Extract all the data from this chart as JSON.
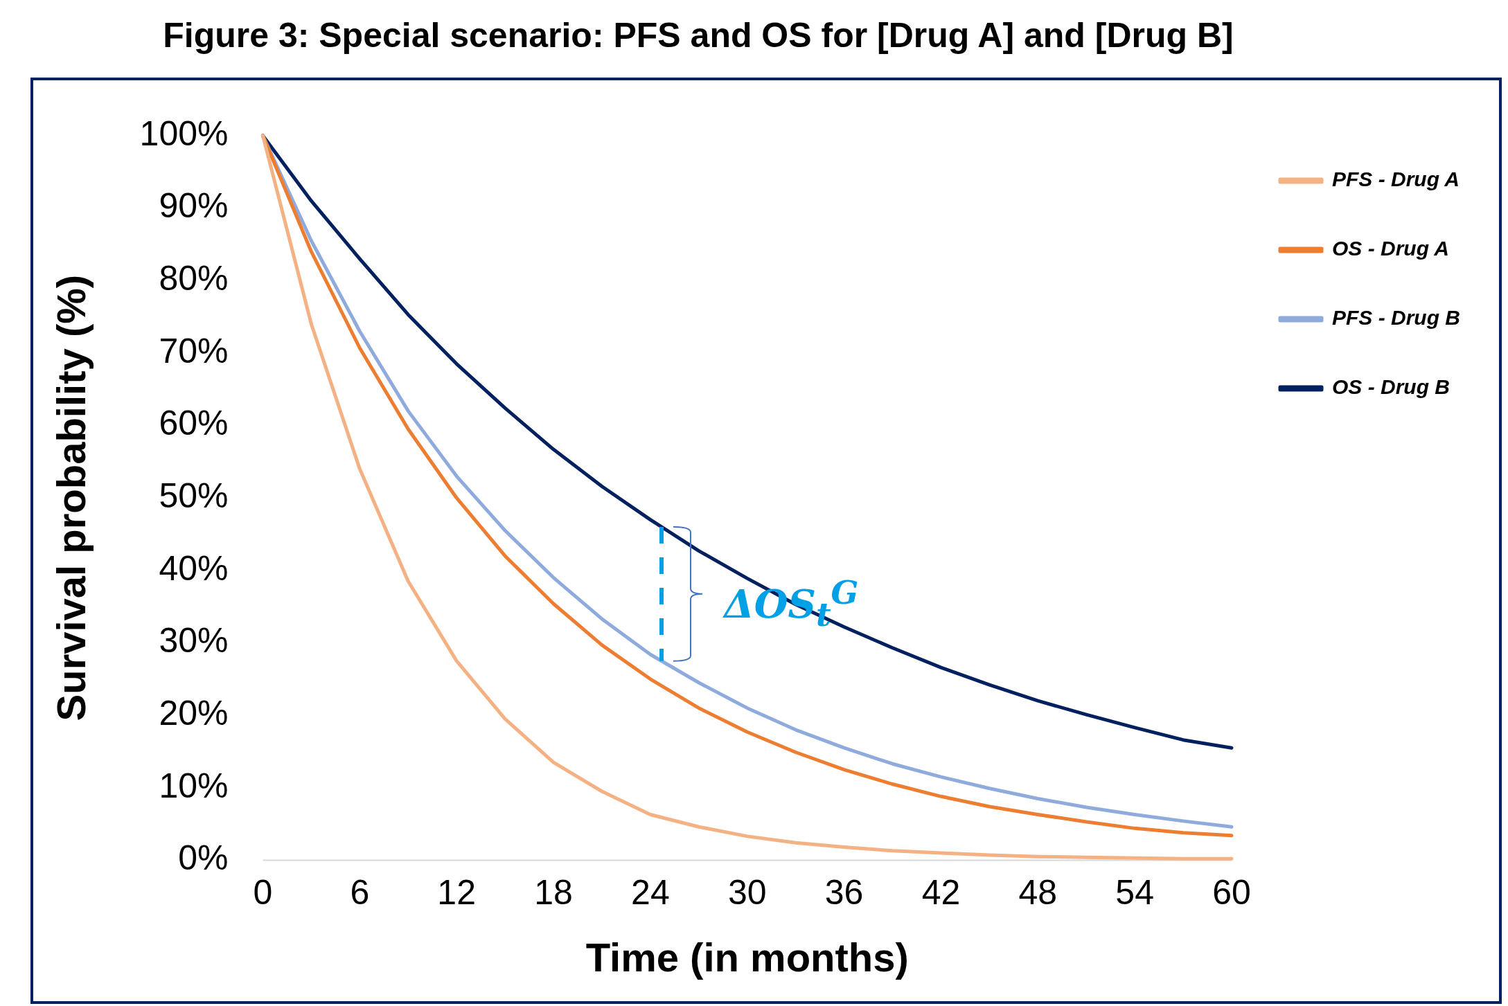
{
  "chart_data": {
    "type": "line",
    "title": "Figure 3: Special scenario: PFS and OS for [Drug A] and [Drug B]",
    "xlabel": "Time (in months)",
    "ylabel": "Survival probability (%)",
    "x": [
      0,
      3,
      6,
      9,
      12,
      15,
      18,
      21,
      24,
      27,
      30,
      33,
      36,
      39,
      42,
      45,
      48,
      51,
      54,
      57,
      60
    ],
    "series": [
      {
        "name": "PFS - Drug A",
        "color": "#f4b183",
        "values": [
          100,
          74,
          54,
          38.5,
          27.5,
          19.5,
          13.5,
          9.5,
          6.3,
          4.6,
          3.3,
          2.4,
          1.8,
          1.3,
          1,
          0.7,
          0.5,
          0.4,
          0.3,
          0.2,
          0.2
        ]
      },
      {
        "name": "OS - Drug A",
        "color": "#ed7d31",
        "values": [
          100,
          84,
          70.7,
          59.5,
          50,
          42,
          35.4,
          29.7,
          25,
          21,
          17.7,
          14.9,
          12.5,
          10.5,
          8.8,
          7.4,
          6.3,
          5.3,
          4.4,
          3.8,
          3.4
        ]
      },
      {
        "name": "PFS - Drug B",
        "color": "#8faadc",
        "values": [
          100,
          85.5,
          73,
          62,
          53,
          45.5,
          39,
          33.3,
          28.4,
          24.5,
          21,
          18,
          15.5,
          13.3,
          11.5,
          9.9,
          8.5,
          7.3,
          6.3,
          5.4,
          4.6
        ]
      },
      {
        "name": "OS - Drug B",
        "color": "#002060",
        "values": [
          100,
          91,
          83,
          75.3,
          68.5,
          62.4,
          56.7,
          51.6,
          47,
          42.7,
          38.9,
          35.3,
          32.2,
          29.3,
          26.6,
          24.2,
          22,
          20.1,
          18.3,
          16.6,
          15.5
        ]
      }
    ],
    "xlim": [
      0,
      60
    ],
    "xticks": [
      0,
      6,
      12,
      18,
      24,
      30,
      36,
      42,
      48,
      54,
      60
    ],
    "ylim": [
      0,
      100
    ],
    "yticks": [
      {
        "value": 0,
        "label": "0%"
      },
      {
        "value": 10,
        "label": "10%"
      },
      {
        "value": 20,
        "label": "20%"
      },
      {
        "value": 30,
        "label": "30%"
      },
      {
        "value": 40,
        "label": "40%"
      },
      {
        "value": 50,
        "label": "50%"
      },
      {
        "value": 60,
        "label": "60%"
      },
      {
        "value": 70,
        "label": "70%"
      },
      {
        "value": 80,
        "label": "80%"
      },
      {
        "value": 90,
        "label": "90%"
      },
      {
        "value": 100,
        "label": "100%"
      }
    ],
    "annotations": [
      {
        "text": "ΔOS$_{t}$$^{G}$",
        "x": 24.7,
        "y": 46
      }
    ],
    "grid": false,
    "legend": "top right",
    "marker": "none",
    "line_style": "solid"
  }
}
